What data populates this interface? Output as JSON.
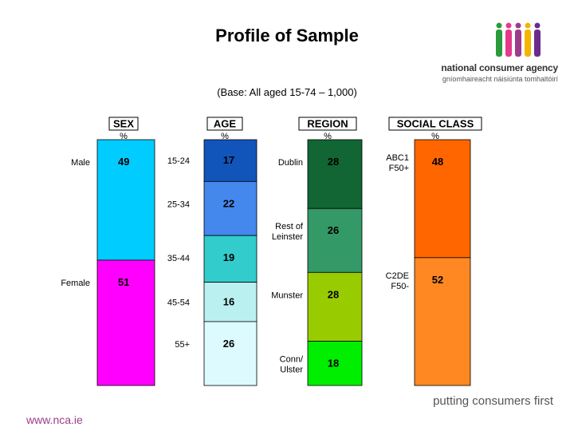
{
  "title": "Profile of Sample",
  "subtitle": "(Base: All aged 15-74 – 1,000)",
  "logo": {
    "name": "national consumer agency",
    "subname": "gníomhaireacht náisiúnta tomhaltóirí"
  },
  "tagline": "putting consumers first",
  "website": "www.nca.ie",
  "chart_data": {
    "type": "bar",
    "stacked": true,
    "percent_symbol": "%",
    "groups": [
      {
        "header": "SEX",
        "segments": [
          {
            "label": "Male",
            "value": 49,
            "color": "#00ccff"
          },
          {
            "label": "Female",
            "value": 51,
            "color": "#ff00ff"
          }
        ]
      },
      {
        "header": "AGE",
        "segments": [
          {
            "label": "15-24",
            "value": 17,
            "color": "#1155bb"
          },
          {
            "label": "25-34",
            "value": 22,
            "color": "#4488ee"
          },
          {
            "label": "35-44",
            "value": 19,
            "color": "#33cccc"
          },
          {
            "label": "45-54",
            "value": 16,
            "color": "#bbf0f0"
          },
          {
            "label": "55+",
            "value": 26,
            "color": "#ddfaff"
          }
        ]
      },
      {
        "header": "REGION",
        "segments": [
          {
            "label": "Dublin",
            "value": 28,
            "color": "#116633"
          },
          {
            "label": "Rest of Leinster",
            "value": 26,
            "color": "#339966"
          },
          {
            "label": "Munster",
            "value": 28,
            "color": "#99cc00"
          },
          {
            "label": "Conn/ Ulster",
            "value": 18,
            "color": "#00ee00"
          }
        ]
      },
      {
        "header": "SOCIAL CLASS",
        "segments": [
          {
            "label": "ABC1 F50+",
            "value": 48,
            "color": "#ff6600"
          },
          {
            "label": "C2DE F50-",
            "value": 52,
            "color": "#ff8822"
          }
        ]
      }
    ]
  },
  "colors": {
    "title_text": "#000000",
    "tagline_text": "#555555",
    "website_text": "#9c3d8b"
  }
}
